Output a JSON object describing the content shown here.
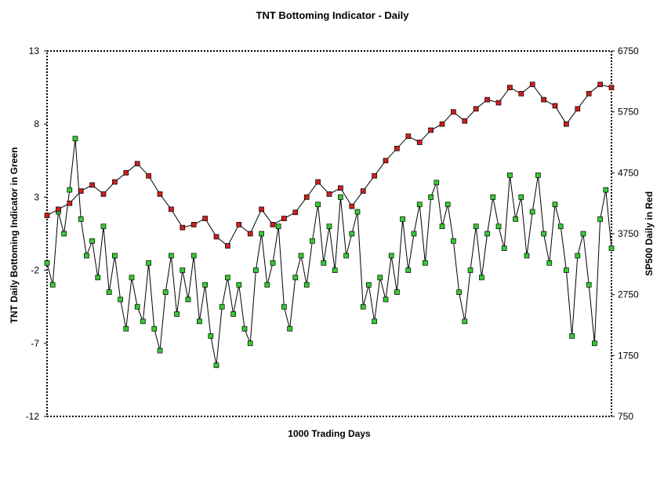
{
  "chart_data": {
    "type": "line",
    "title": "TNT Bottoming Indicator - Daily",
    "xlabel": "1000 Trading Days",
    "ylabel_left": "TNT Daily Bottoming Indicator in Green",
    "ylabel_right": "SP500 Daily in Red",
    "x_range": [
      0,
      1000
    ],
    "y_left": {
      "range": [
        -12,
        13
      ],
      "ticks": [
        "13",
        "8",
        "3",
        "-2",
        "-7",
        "-12"
      ]
    },
    "y_right": {
      "range": [
        750,
        6750
      ],
      "ticks": [
        "6750",
        "5750",
        "4750",
        "3750",
        "2750",
        "1750",
        "750"
      ]
    },
    "grid": false,
    "series": [
      {
        "name": "SP500 Daily",
        "axis": "right",
        "color": "#cc1f1f",
        "marker": "square",
        "x": [
          0,
          20,
          40,
          60,
          80,
          100,
          120,
          140,
          160,
          180,
          200,
          220,
          240,
          260,
          280,
          300,
          320,
          340,
          360,
          380,
          400,
          420,
          440,
          460,
          480,
          500,
          520,
          540,
          560,
          580,
          600,
          620,
          640,
          660,
          680,
          700,
          720,
          740,
          760,
          780,
          800,
          820,
          840,
          860,
          880,
          900,
          920,
          940,
          960,
          980,
          1000
        ],
        "values": [
          4050,
          4150,
          4250,
          4450,
          4550,
          4400,
          4600,
          4750,
          4900,
          4700,
          4400,
          4150,
          3850,
          3900,
          4000,
          3700,
          3550,
          3900,
          3750,
          4150,
          3900,
          4000,
          4100,
          4350,
          4600,
          4400,
          4500,
          4200,
          4450,
          4700,
          4950,
          5150,
          5350,
          5250,
          5450,
          5550,
          5750,
          5600,
          5800,
          5950,
          5900,
          6150,
          6050,
          6200,
          5950,
          5850,
          5550,
          5800,
          6050,
          6200,
          6150
        ]
      },
      {
        "name": "TNT Daily Bottoming Indicator",
        "axis": "left",
        "color": "#33cc33",
        "marker": "square",
        "x": [
          0,
          10,
          20,
          30,
          40,
          50,
          60,
          70,
          80,
          90,
          100,
          110,
          120,
          130,
          140,
          150,
          160,
          170,
          180,
          190,
          200,
          210,
          220,
          230,
          240,
          250,
          260,
          270,
          280,
          290,
          300,
          310,
          320,
          330,
          340,
          350,
          360,
          370,
          380,
          390,
          400,
          410,
          420,
          430,
          440,
          450,
          460,
          470,
          480,
          490,
          500,
          510,
          520,
          530,
          540,
          550,
          560,
          570,
          580,
          590,
          600,
          610,
          620,
          630,
          640,
          650,
          660,
          670,
          680,
          690,
          700,
          710,
          720,
          730,
          740,
          750,
          760,
          770,
          780,
          790,
          800,
          810,
          820,
          830,
          840,
          850,
          860,
          870,
          880,
          890,
          900,
          910,
          920,
          930,
          940,
          950,
          960,
          970,
          980,
          990,
          1000
        ],
        "values": [
          -1.5,
          -3.0,
          2.0,
          0.5,
          3.5,
          7.0,
          1.5,
          -1.0,
          0.0,
          -2.5,
          1.0,
          -3.5,
          -1.0,
          -4.0,
          -6.0,
          -2.5,
          -4.5,
          -5.5,
          -1.5,
          -6.0,
          -7.5,
          -3.5,
          -1.0,
          -5.0,
          -2.0,
          -4.0,
          -1.0,
          -5.5,
          -3.0,
          -6.5,
          -8.5,
          -4.5,
          -2.5,
          -5.0,
          -3.0,
          -6.0,
          -7.0,
          -2.0,
          0.5,
          -3.0,
          -1.5,
          1.0,
          -4.5,
          -6.0,
          -2.5,
          -1.0,
          -3.0,
          0.0,
          2.5,
          -1.5,
          1.0,
          -2.0,
          3.0,
          -1.0,
          0.5,
          2.0,
          -4.5,
          -3.0,
          -5.5,
          -2.5,
          -4.0,
          -1.0,
          -3.5,
          1.5,
          -2.0,
          0.5,
          2.5,
          -1.5,
          3.0,
          4.0,
          1.0,
          2.5,
          0.0,
          -3.5,
          -5.5,
          -2.0,
          1.0,
          -2.5,
          0.5,
          3.0,
          1.0,
          -0.5,
          4.5,
          1.5,
          3.0,
          -1.0,
          2.0,
          4.5,
          0.5,
          -1.5,
          2.5,
          1.0,
          -2.0,
          -6.5,
          -1.0,
          0.5,
          -3.0,
          -7.0,
          1.5,
          3.5,
          -0.5
        ]
      }
    ]
  }
}
